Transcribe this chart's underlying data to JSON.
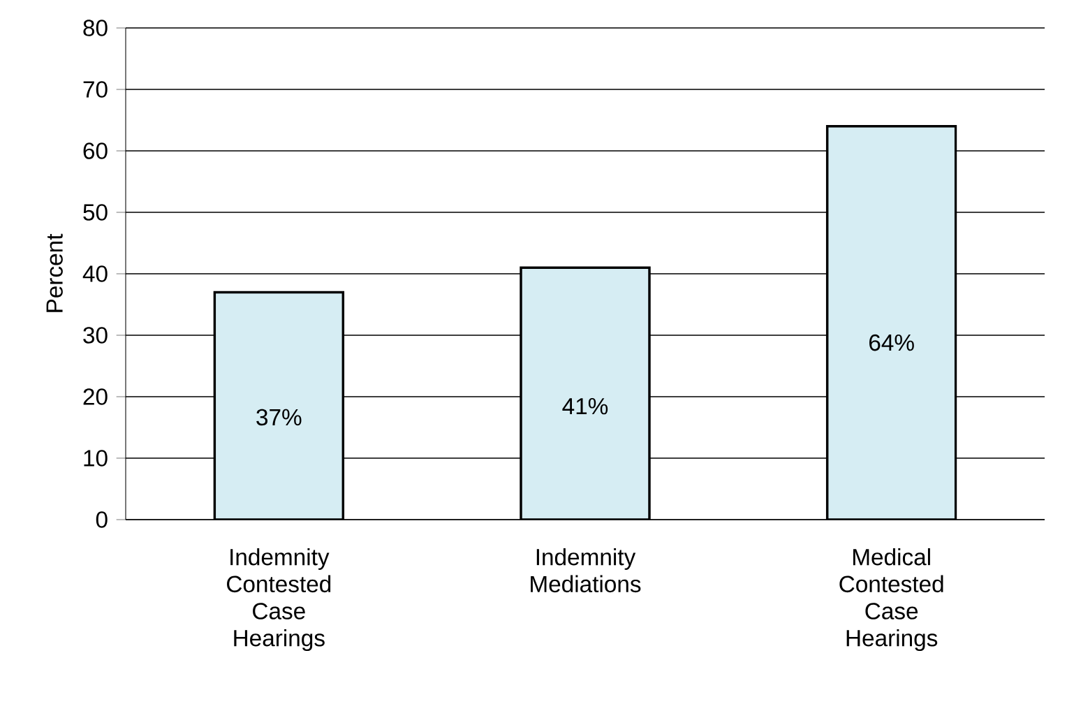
{
  "chart_data": {
    "type": "bar",
    "ylabel": "Percent",
    "categories": [
      "Indemnity Contested Case Hearings",
      "Indemnity Mediations",
      "Medical Contested Case Hearings"
    ],
    "values": [
      37,
      41,
      64
    ],
    "value_labels": [
      "37%",
      "41%",
      "64%"
    ],
    "color": "#d6edf3",
    "ylim": [
      0,
      80
    ],
    "yticks": [
      0,
      10,
      20,
      30,
      40,
      50,
      60,
      70,
      80
    ],
    "grid": "y"
  }
}
